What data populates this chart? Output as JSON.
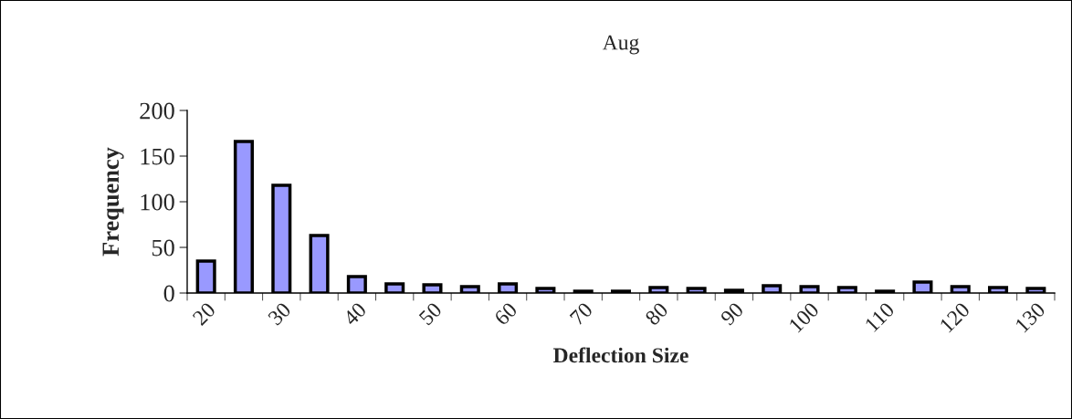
{
  "chart_data": {
    "type": "bar",
    "title": "Aug",
    "xlabel": "Deflection Size",
    "ylabel": "Frequency",
    "categories": [
      "20",
      null,
      "30",
      null,
      "40",
      null,
      "50",
      null,
      "60",
      null,
      "70",
      null,
      "80",
      null,
      "90",
      null,
      "100",
      null,
      "110",
      null,
      "120",
      null,
      "130"
    ],
    "values": [
      35,
      166,
      118,
      63,
      18,
      10,
      9,
      7,
      10,
      5,
      2,
      2,
      6,
      5,
      3,
      8,
      7,
      6,
      2,
      12,
      7,
      6,
      5
    ],
    "color": "#9999ff",
    "ylim": [
      0,
      200
    ],
    "yticks": [
      0,
      50,
      100,
      150,
      200
    ],
    "grid": false,
    "legend": false
  }
}
